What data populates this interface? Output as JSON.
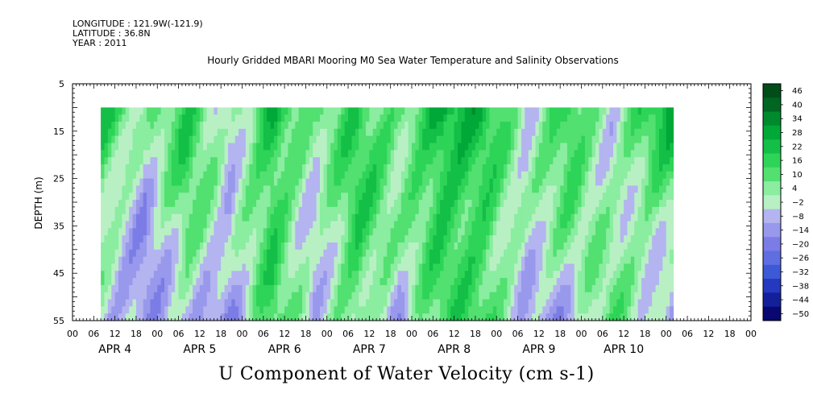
{
  "header": {
    "longitude": "LONGITUDE : 121.9W(-121.9)",
    "latitude": "LATITUDE : 36.8N",
    "year": "YEAR : 2011",
    "subtitle": "Hourly Gridded MBARI Mooring M0 Sea Water Temperature and Salinity Observations"
  },
  "chart_data": {
    "type": "heatmap",
    "title": "U Component of Water Velocity (cm s-1)",
    "subtitle": "Hourly Gridded MBARI Mooring M0 Sea Water Temperature and Salinity Observations",
    "ylabel": "DEPTH (m)",
    "xlabel": "",
    "y_inverted": true,
    "ylim": [
      55,
      5
    ],
    "y_ticks": [
      5,
      15,
      25,
      35,
      45,
      55
    ],
    "x_hour_ticks": [
      "00",
      "06",
      "12",
      "18",
      "00",
      "06",
      "12",
      "18",
      "00",
      "06",
      "12",
      "18",
      "00",
      "06",
      "12",
      "18",
      "00",
      "06",
      "12",
      "18",
      "00",
      "06",
      "12",
      "18",
      "00",
      "06",
      "12",
      "18",
      "00",
      "06",
      "12",
      "18",
      "00"
    ],
    "x_days": [
      "APR  4",
      "APR  5",
      "APR  6",
      "APR  7",
      "APR  8",
      "APR  9",
      "APR 10"
    ],
    "data_start_hour": 8,
    "data_end_hour": 170,
    "data_depth_range": [
      10,
      55
    ],
    "colorbar": {
      "levels": [
        "46",
        "40",
        "34",
        "28",
        "22",
        "16",
        "10",
        "4",
        "−2",
        "−8",
        "−14",
        "−20",
        "−26",
        "−32",
        "−38",
        "−44",
        "−50"
      ],
      "colors": [
        "#004d1a",
        "#006622",
        "#008a2e",
        "#00a838",
        "#14bf47",
        "#2dd457",
        "#52e070",
        "#8aeda0",
        "#b8f0c4",
        "#b4b4f0",
        "#9898ec",
        "#7c7ce6",
        "#5f6ee0",
        "#3c5ad8",
        "#2438c0",
        "#14209a",
        "#080870"
      ]
    },
    "series": [
      {
        "name": "",
        "x_hours": [
          8,
          20,
          32,
          44,
          56,
          68,
          80,
          92,
          104,
          116,
          128,
          140,
          152,
          164,
          170
        ],
        "surface_u": [
          18,
          -8,
          14,
          -6,
          20,
          -4,
          12,
          6,
          24,
          16,
          -10,
          20,
          -6,
          14,
          18
        ],
        "bottom_u": [
          -12,
          -18,
          -4,
          -20,
          8,
          -10,
          10,
          -14,
          6,
          10,
          -8,
          -16,
          4,
          -10,
          -14
        ]
      }
    ]
  }
}
